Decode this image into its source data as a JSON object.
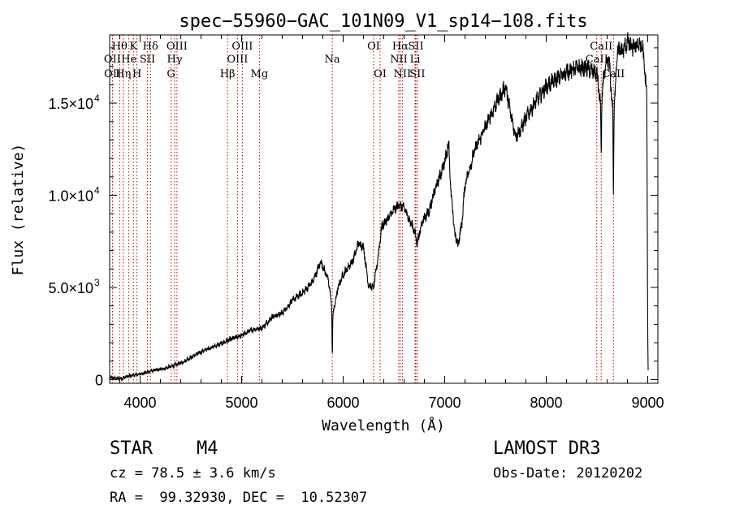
{
  "chart_data": {
    "type": "line",
    "title": "spec−55960−GAC_101N09_V1_sp14−108.fits",
    "xlabel": "Wavelength (Å)",
    "ylabel": "Flux (relative)",
    "xlim": [
      3700,
      9100
    ],
    "ylim": [
      -200,
      18700
    ],
    "x_ticks": [
      {
        "value": 4000,
        "label": "4000"
      },
      {
        "value": 5000,
        "label": "5000"
      },
      {
        "value": 6000,
        "label": "6000"
      },
      {
        "value": 7000,
        "label": "7000"
      },
      {
        "value": 8000,
        "label": "8000"
      },
      {
        "value": 9000,
        "label": "9000"
      }
    ],
    "y_ticks": [
      {
        "value": 0,
        "mantissa": "0",
        "exp": ""
      },
      {
        "value": 5000,
        "mantissa": "5.0×10",
        "exp": "3"
      },
      {
        "value": 10000,
        "mantissa": "1.0×10",
        "exp": "4"
      },
      {
        "value": 15000,
        "mantissa": "1.5×10",
        "exp": "4"
      }
    ],
    "series": [
      {
        "name": "spectrum",
        "points": [
          [
            3700,
            100
          ],
          [
            3800,
            50
          ],
          [
            3900,
            200
          ],
          [
            4000,
            300
          ],
          [
            4100,
            450
          ],
          [
            4200,
            550
          ],
          [
            4300,
            700
          ],
          [
            4400,
            900
          ],
          [
            4500,
            1200
          ],
          [
            4600,
            1500
          ],
          [
            4700,
            1750
          ],
          [
            4800,
            1950
          ],
          [
            4900,
            2200
          ],
          [
            5000,
            2400
          ],
          [
            5100,
            2700
          ],
          [
            5200,
            2800
          ],
          [
            5300,
            3400
          ],
          [
            5400,
            3600
          ],
          [
            5500,
            4300
          ],
          [
            5600,
            4700
          ],
          [
            5700,
            5300
          ],
          [
            5780,
            6400
          ],
          [
            5850,
            5500
          ],
          [
            5900,
            3600
          ],
          [
            5950,
            5000
          ],
          [
            6000,
            5700
          ],
          [
            6100,
            6500
          ],
          [
            6150,
            7400
          ],
          [
            6200,
            7200
          ],
          [
            6250,
            5100
          ],
          [
            6300,
            5000
          ],
          [
            6330,
            6100
          ],
          [
            6380,
            8300
          ],
          [
            6450,
            8800
          ],
          [
            6500,
            9200
          ],
          [
            6550,
            9500
          ],
          [
            6600,
            9300
          ],
          [
            6650,
            8700
          ],
          [
            6700,
            8100
          ],
          [
            6730,
            7400
          ],
          [
            6780,
            8600
          ],
          [
            6850,
            9200
          ],
          [
            6900,
            10200
          ],
          [
            6950,
            11000
          ],
          [
            7000,
            11800
          ],
          [
            7040,
            12900
          ],
          [
            7060,
            10200
          ],
          [
            7100,
            7900
          ],
          [
            7130,
            7300
          ],
          [
            7170,
            8500
          ],
          [
            7200,
            10600
          ],
          [
            7300,
            12500
          ],
          [
            7400,
            13700
          ],
          [
            7500,
            14900
          ],
          [
            7600,
            15900
          ],
          [
            7650,
            14400
          ],
          [
            7700,
            13200
          ],
          [
            7750,
            13600
          ],
          [
            7800,
            14200
          ],
          [
            7900,
            15100
          ],
          [
            8000,
            15900
          ],
          [
            8100,
            16300
          ],
          [
            8200,
            16700
          ],
          [
            8300,
            16900
          ],
          [
            8400,
            16900
          ],
          [
            8500,
            16600
          ],
          [
            8542,
            14500
          ],
          [
            8560,
            16200
          ],
          [
            8600,
            17200
          ],
          [
            8620,
            17300
          ],
          [
            8662,
            14000
          ],
          [
            8700,
            17900
          ],
          [
            8750,
            17800
          ],
          [
            8800,
            18300
          ],
          [
            8850,
            18000
          ],
          [
            8900,
            18200
          ],
          [
            8950,
            18000
          ],
          [
            8990,
            15500
          ],
          [
            9000,
            2500
          ],
          [
            9005,
            0
          ]
        ]
      }
    ],
    "absorption_features": [
      {
        "wavelength": 5893,
        "depth": 2500
      },
      {
        "wavelength": 8542,
        "depth": 2400
      },
      {
        "wavelength": 8662,
        "depth": 3800
      }
    ],
    "spectral_lines": [
      {
        "label": "Hθ",
        "wavelength": 3798,
        "row": 1
      },
      {
        "label": "OII",
        "wavelength": 3727,
        "row": 2
      },
      {
        "label": "OII",
        "wavelength": 3729,
        "row": 3
      },
      {
        "label": "He",
        "wavelength": 3889,
        "row": 2
      },
      {
        "label": "Hη",
        "wavelength": 3835,
        "row": 3
      },
      {
        "label": "K",
        "wavelength": 3934,
        "row": 1
      },
      {
        "label": "H",
        "wavelength": 3969,
        "row": 3
      },
      {
        "label": "SII",
        "wavelength": 4072,
        "row": 2
      },
      {
        "label": "Hδ",
        "wavelength": 4102,
        "row": 1
      },
      {
        "label": "OIII",
        "wavelength": 4363,
        "row": 1
      },
      {
        "label": "Hγ",
        "wavelength": 4340,
        "row": 2
      },
      {
        "label": "G",
        "wavelength": 4305,
        "row": 3
      },
      {
        "label": "Hβ",
        "wavelength": 4861,
        "row": 3
      },
      {
        "label": "OIII",
        "wavelength": 5007,
        "row": 1
      },
      {
        "label": "OIII",
        "wavelength": 4959,
        "row": 2
      },
      {
        "label": "Mg",
        "wavelength": 5175,
        "row": 3
      },
      {
        "label": "Na",
        "wavelength": 5893,
        "row": 2
      },
      {
        "label": "OI",
        "wavelength": 6300,
        "row": 1
      },
      {
        "label": "OI",
        "wavelength": 6364,
        "row": 3
      },
      {
        "label": "Hα",
        "wavelength": 6563,
        "row": 1
      },
      {
        "label": "NII",
        "wavelength": 6548,
        "row": 2
      },
      {
        "label": "NII",
        "wavelength": 6583,
        "row": 3
      },
      {
        "label": "SII",
        "wavelength": 6716,
        "row": 1
      },
      {
        "label": "Li",
        "wavelength": 6708,
        "row": 2
      },
      {
        "label": "SII",
        "wavelength": 6731,
        "row": 3
      },
      {
        "label": "CaII",
        "wavelength": 8542,
        "row": 1
      },
      {
        "label": "CaII",
        "wavelength": 8498,
        "row": 2
      },
      {
        "label": "CaII",
        "wavelength": 8662,
        "row": 3
      }
    ]
  },
  "info": {
    "object_class": "STAR",
    "subclass": "M4",
    "survey": "LAMOST DR3",
    "redshift": "cz = 78.5 ± 3.6 km/s",
    "obs_date": "Obs-Date: 20120202",
    "coords": "RA =  99.32930, DEC =  10.52307"
  }
}
